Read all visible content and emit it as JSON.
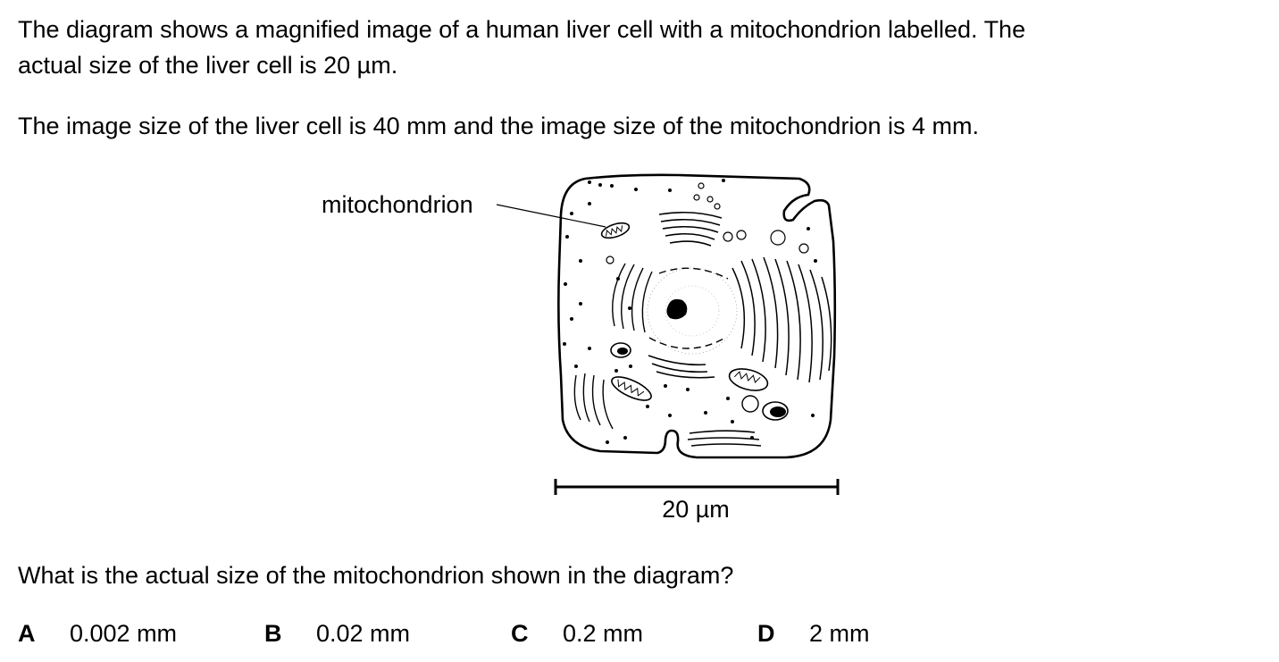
{
  "intro": {
    "line1": "The diagram shows a magnified image of a human liver cell with a mitochondrion labelled. The",
    "line2": "actual size of the liver cell is 20 µm."
  },
  "measurements": "The image size of the liver cell is 40 mm and the image size of the mitochondrion is 4 mm.",
  "diagram": {
    "label_mitochondrion": "mitochondrion",
    "scale_bar_label": "20 µm"
  },
  "question": "What is the actual size of the mitochondrion shown in the diagram?",
  "options": [
    {
      "letter": "A",
      "value": "0.002 mm"
    },
    {
      "letter": "B",
      "value": "0.02 mm"
    },
    {
      "letter": "C",
      "value": "0.2 mm"
    },
    {
      "letter": "D",
      "value": "2 mm"
    }
  ]
}
